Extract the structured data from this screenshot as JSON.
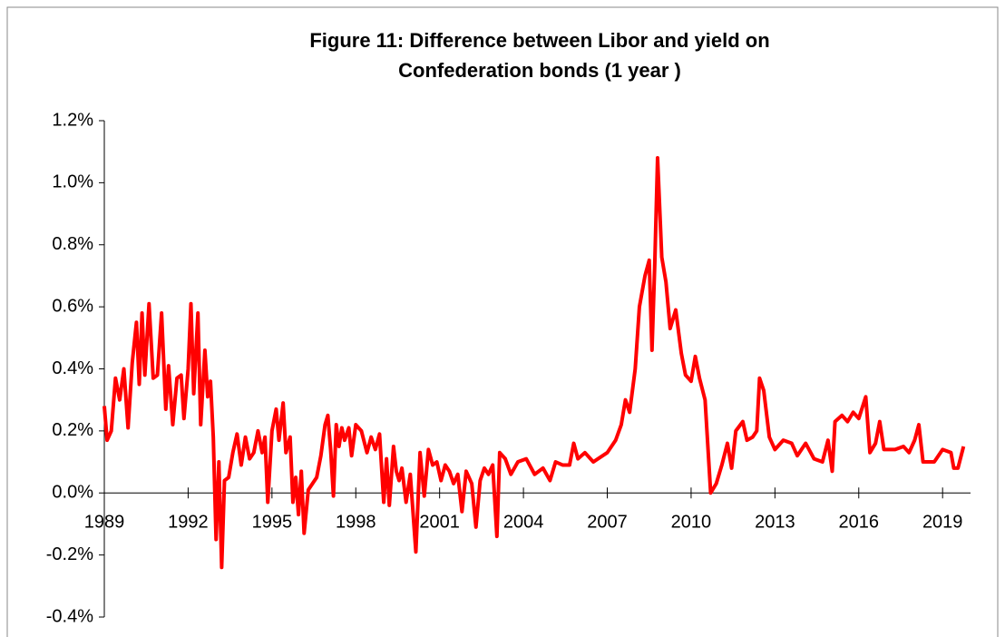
{
  "chart_data": {
    "type": "line",
    "title": "Figure 11: Difference between Libor and yield on Confederation bonds (1 year )",
    "color": "#ff0000",
    "x": [
      1989.0,
      1989.1,
      1989.25,
      1989.4,
      1989.55,
      1989.7,
      1989.85,
      1990.0,
      1990.15,
      1990.25,
      1990.35,
      1990.45,
      1990.6,
      1990.75,
      1990.9,
      1991.05,
      1991.2,
      1991.3,
      1991.45,
      1991.6,
      1991.75,
      1991.85,
      1992.0,
      1992.1,
      1992.2,
      1992.35,
      1992.45,
      1992.6,
      1992.7,
      1992.8,
      1992.9,
      1993.0,
      1993.1,
      1993.2,
      1993.3,
      1993.45,
      1993.6,
      1993.75,
      1993.9,
      1994.05,
      1994.2,
      1994.35,
      1994.5,
      1994.65,
      1994.75,
      1994.85,
      1995.0,
      1995.15,
      1995.25,
      1995.4,
      1995.5,
      1995.65,
      1995.75,
      1995.85,
      1995.95,
      1996.05,
      1996.15,
      1996.3,
      1996.45,
      1996.6,
      1996.75,
      1996.9,
      1997.0,
      1997.1,
      1997.2,
      1997.3,
      1997.4,
      1997.5,
      1997.6,
      1997.75,
      1997.85,
      1998.0,
      1998.2,
      1998.4,
      1998.55,
      1998.7,
      1998.85,
      1999.0,
      1999.1,
      1999.2,
      1999.35,
      1999.45,
      1999.55,
      1999.65,
      1999.8,
      1999.95,
      2000.15,
      2000.3,
      2000.45,
      2000.6,
      2000.75,
      2000.9,
      2001.05,
      2001.2,
      2001.35,
      2001.5,
      2001.65,
      2001.8,
      2001.95,
      2002.15,
      2002.3,
      2002.45,
      2002.6,
      2002.75,
      2002.9,
      2003.05,
      2003.15,
      2003.35,
      2003.55,
      2003.8,
      2004.1,
      2004.4,
      2004.7,
      2004.95,
      2005.15,
      2005.4,
      2005.65,
      2005.8,
      2005.95,
      2006.2,
      2006.5,
      2007.0,
      2007.3,
      2007.5,
      2007.65,
      2007.8,
      2008.0,
      2008.15,
      2008.35,
      2008.5,
      2008.6,
      2008.7,
      2008.8,
      2008.95,
      2009.1,
      2009.25,
      2009.45,
      2009.65,
      2009.8,
      2010.0,
      2010.15,
      2010.3,
      2010.5,
      2010.7,
      2010.9,
      2011.1,
      2011.3,
      2011.45,
      2011.6,
      2011.85,
      2012.0,
      2012.2,
      2012.35,
      2012.45,
      2012.6,
      2012.8,
      2013.0,
      2013.3,
      2013.6,
      2013.8,
      2014.1,
      2014.4,
      2014.7,
      2014.9,
      2015.05,
      2015.15,
      2015.4,
      2015.6,
      2015.8,
      2016.0,
      2016.25,
      2016.4,
      2016.6,
      2016.75,
      2016.9,
      2017.3,
      2017.6,
      2017.8,
      2018.0,
      2018.15,
      2018.3,
      2018.7,
      2019.0,
      2019.3,
      2019.4,
      2019.55,
      2019.75
    ],
    "values": [
      0.28,
      0.17,
      0.2,
      0.37,
      0.3,
      0.4,
      0.21,
      0.42,
      0.55,
      0.35,
      0.58,
      0.38,
      0.61,
      0.37,
      0.38,
      0.58,
      0.27,
      0.41,
      0.22,
      0.37,
      0.38,
      0.24,
      0.4,
      0.61,
      0.32,
      0.58,
      0.22,
      0.46,
      0.31,
      0.36,
      0.18,
      -0.15,
      0.1,
      -0.24,
      0.04,
      0.05,
      0.13,
      0.19,
      0.09,
      0.18,
      0.11,
      0.13,
      0.2,
      0.13,
      0.18,
      -0.03,
      0.2,
      0.27,
      0.17,
      0.29,
      0.13,
      0.18,
      -0.03,
      0.05,
      -0.07,
      0.07,
      -0.13,
      0.01,
      0.03,
      0.05,
      0.12,
      0.22,
      0.25,
      0.14,
      -0.01,
      0.22,
      0.15,
      0.21,
      0.17,
      0.21,
      0.12,
      0.22,
      0.2,
      0.13,
      0.18,
      0.14,
      0.19,
      -0.03,
      0.11,
      -0.04,
      0.15,
      0.07,
      0.04,
      0.08,
      -0.03,
      0.06,
      -0.19,
      0.13,
      -0.01,
      0.14,
      0.09,
      0.1,
      0.04,
      0.09,
      0.07,
      0.03,
      0.06,
      -0.06,
      0.07,
      0.03,
      -0.11,
      0.04,
      0.08,
      0.06,
      0.09,
      -0.14,
      0.13,
      0.11,
      0.06,
      0.1,
      0.11,
      0.06,
      0.08,
      0.04,
      0.1,
      0.09,
      0.09,
      0.16,
      0.11,
      0.13,
      0.1,
      0.13,
      0.17,
      0.22,
      0.3,
      0.26,
      0.4,
      0.6,
      0.7,
      0.75,
      0.46,
      0.74,
      1.08,
      0.76,
      0.68,
      0.53,
      0.59,
      0.45,
      0.38,
      0.36,
      0.44,
      0.37,
      0.3,
      0.0,
      0.03,
      0.09,
      0.16,
      0.08,
      0.2,
      0.23,
      0.17,
      0.18,
      0.2,
      0.37,
      0.33,
      0.18,
      0.14,
      0.17,
      0.16,
      0.12,
      0.16,
      0.11,
      0.1,
      0.17,
      0.07,
      0.23,
      0.25,
      0.23,
      0.26,
      0.24,
      0.31,
      0.13,
      0.16,
      0.23,
      0.14,
      0.14,
      0.15,
      0.13,
      0.17,
      0.22,
      0.1,
      0.1,
      0.14,
      0.13,
      0.08,
      0.08,
      0.15
    ],
    "xlim": [
      1989,
      2020
    ],
    "xticks": [
      1989,
      1992,
      1995,
      1998,
      2001,
      2004,
      2007,
      2010,
      2013,
      2016,
      2019
    ],
    "ylim": [
      -0.4,
      1.2
    ],
    "yticks": [
      {
        "value": -0.4,
        "label": "-0.4%"
      },
      {
        "value": -0.2,
        "label": "-0.2%"
      },
      {
        "value": 0,
        "label": "0.0%"
      },
      {
        "value": 0.2,
        "label": "0.2%"
      },
      {
        "value": 0.4,
        "label": "0.4%"
      },
      {
        "value": 0.6,
        "label": "0.6%"
      },
      {
        "value": 0.8,
        "label": "0.8%"
      },
      {
        "value": 1.0,
        "label": "1.0%"
      },
      {
        "value": 1.2,
        "label": "1.2%"
      }
    ]
  }
}
